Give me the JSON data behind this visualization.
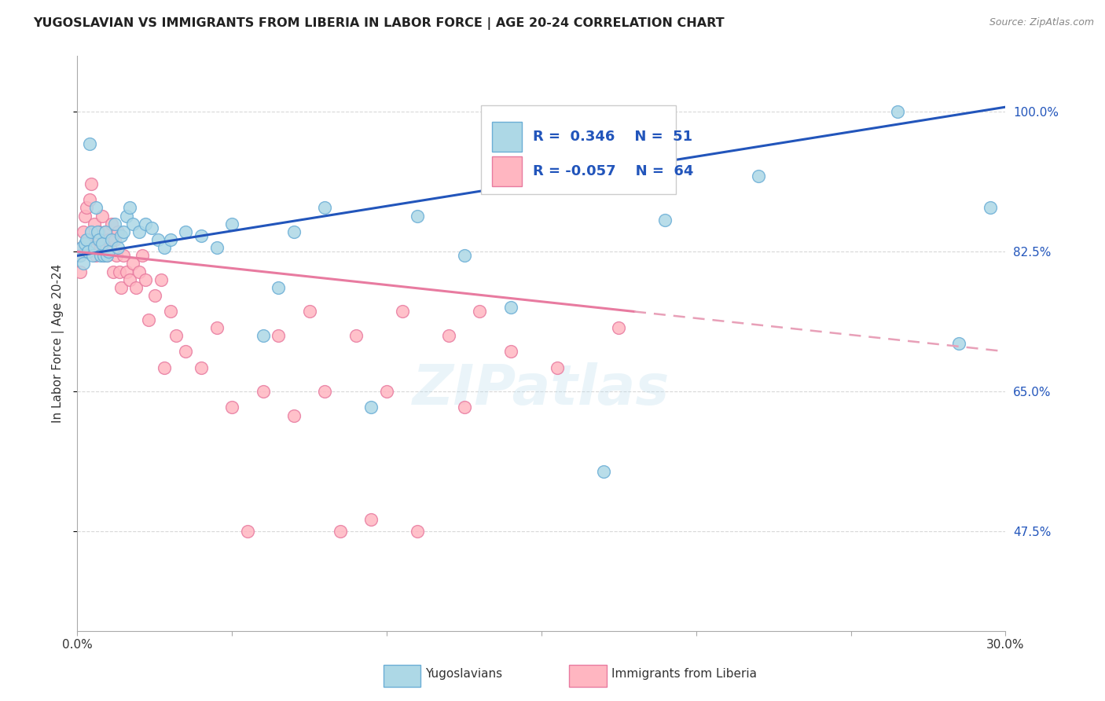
{
  "title": "YUGOSLAVIAN VS IMMIGRANTS FROM LIBERIA IN LABOR FORCE | AGE 20-24 CORRELATION CHART",
  "source": "Source: ZipAtlas.com",
  "ylabel": "In Labor Force | Age 20-24",
  "xlim": [
    0.0,
    30.0
  ],
  "ylim": [
    35.0,
    107.0
  ],
  "yticks": [
    47.5,
    65.0,
    82.5,
    100.0
  ],
  "ytick_labels": [
    "47.5%",
    "65.0%",
    "82.5%",
    "100.0%"
  ],
  "xticks": [
    0.0,
    5.0,
    10.0,
    15.0,
    20.0,
    25.0,
    30.0
  ],
  "xtick_labels": [
    "0.0%",
    "",
    "",
    "",
    "",
    "",
    "30.0%"
  ],
  "background_color": "#ffffff",
  "grid_color": "#d8d8d8",
  "blue_color": "#ADD8E6",
  "blue_edge": "#6BAED6",
  "pink_color": "#FFB6C1",
  "pink_edge": "#E87BA0",
  "blue_line_color": "#2255BB",
  "pink_line_color": "#E87BA0",
  "pink_dash_color": "#E8A0B8",
  "legend_r_blue": "R =  0.346",
  "legend_n_blue": "N =  51",
  "legend_r_pink": "R = -0.057",
  "legend_n_pink": "N =  64",
  "watermark": "ZIPatlas",
  "yug_x": [
    0.1,
    0.15,
    0.2,
    0.25,
    0.3,
    0.35,
    0.4,
    0.45,
    0.5,
    0.55,
    0.6,
    0.65,
    0.7,
    0.75,
    0.8,
    0.85,
    0.9,
    0.95,
    1.0,
    1.1,
    1.2,
    1.3,
    1.4,
    1.5,
    1.6,
    1.7,
    1.8,
    2.0,
    2.2,
    2.4,
    2.6,
    2.8,
    3.0,
    3.5,
    4.0,
    4.5,
    5.0,
    6.0,
    7.0,
    8.0,
    9.5,
    11.0,
    12.5,
    14.0,
    17.0,
    19.0,
    22.0,
    26.5,
    28.5,
    29.5,
    6.5
  ],
  "yug_y": [
    82.0,
    83.0,
    81.0,
    83.5,
    84.0,
    82.5,
    96.0,
    85.0,
    82.0,
    83.0,
    88.0,
    85.0,
    84.0,
    82.0,
    83.5,
    82.0,
    85.0,
    82.0,
    82.5,
    84.0,
    86.0,
    83.0,
    84.5,
    85.0,
    87.0,
    88.0,
    86.0,
    85.0,
    86.0,
    85.5,
    84.0,
    83.0,
    84.0,
    85.0,
    84.5,
    83.0,
    86.0,
    72.0,
    85.0,
    88.0,
    63.0,
    87.0,
    82.0,
    75.5,
    55.0,
    86.5,
    92.0,
    100.0,
    71.0,
    88.0,
    78.0
  ],
  "lib_x": [
    0.05,
    0.1,
    0.15,
    0.2,
    0.25,
    0.3,
    0.35,
    0.4,
    0.45,
    0.5,
    0.55,
    0.6,
    0.65,
    0.7,
    0.75,
    0.8,
    0.85,
    0.9,
    0.95,
    1.0,
    1.05,
    1.1,
    1.15,
    1.2,
    1.25,
    1.3,
    1.35,
    1.4,
    1.5,
    1.6,
    1.7,
    1.8,
    1.9,
    2.0,
    2.1,
    2.2,
    2.3,
    2.5,
    2.7,
    3.0,
    3.2,
    3.5,
    4.0,
    4.5,
    5.0,
    5.5,
    6.0,
    6.5,
    7.0,
    7.5,
    8.0,
    8.5,
    9.0,
    9.5,
    10.0,
    10.5,
    11.0,
    12.0,
    13.0,
    14.0,
    15.5,
    17.5,
    12.5,
    2.8
  ],
  "lib_y": [
    82.0,
    80.0,
    83.0,
    85.0,
    87.0,
    88.0,
    84.0,
    89.0,
    91.0,
    83.0,
    86.0,
    82.0,
    84.0,
    85.0,
    83.0,
    87.0,
    82.0,
    85.0,
    82.0,
    84.0,
    83.0,
    86.0,
    80.0,
    84.0,
    82.0,
    85.0,
    80.0,
    78.0,
    82.0,
    80.0,
    79.0,
    81.0,
    78.0,
    80.0,
    82.0,
    79.0,
    74.0,
    77.0,
    79.0,
    75.0,
    72.0,
    70.0,
    68.0,
    73.0,
    63.0,
    47.5,
    65.0,
    72.0,
    62.0,
    75.0,
    65.0,
    47.5,
    72.0,
    49.0,
    65.0,
    75.0,
    47.5,
    72.0,
    75.0,
    70.0,
    68.0,
    73.0,
    63.0,
    68.0
  ]
}
